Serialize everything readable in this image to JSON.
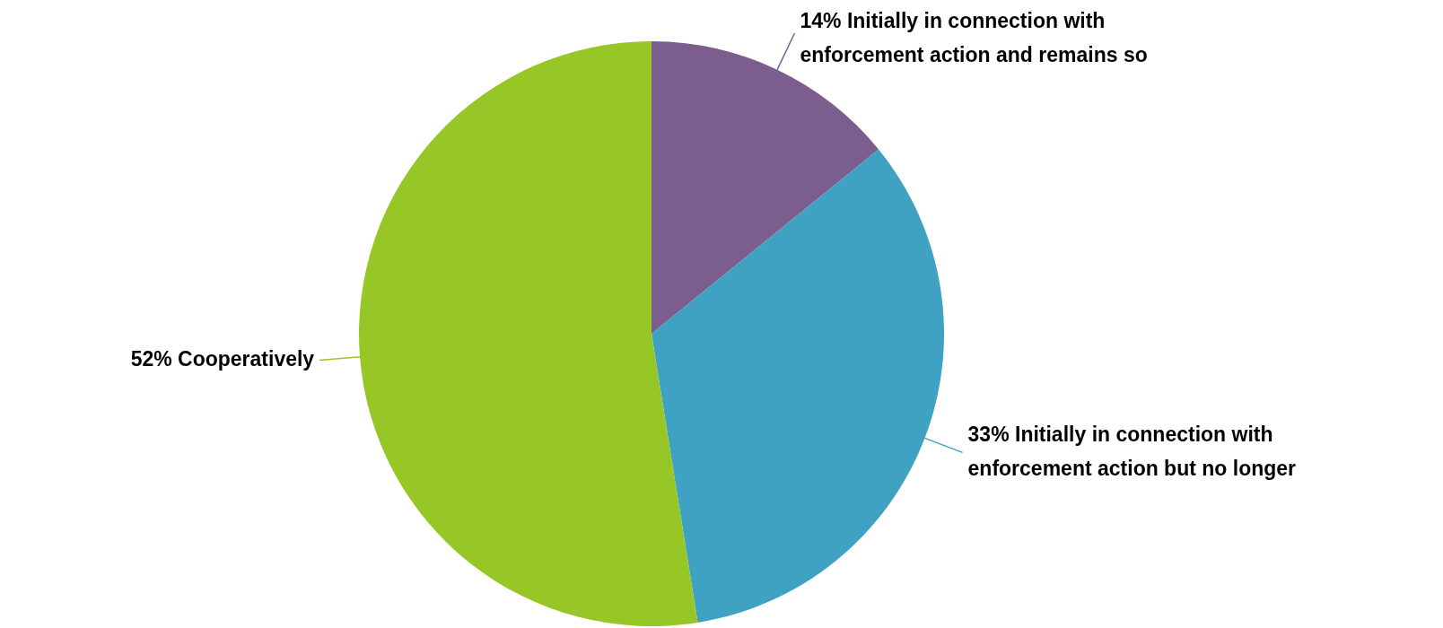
{
  "chart_data": {
    "type": "pie",
    "categories": [
      "Initially in connection with enforcement action and remains so",
      "Initially in connection with enforcement action but no longer",
      "Cooperatively"
    ],
    "values": [
      14,
      33,
      52
    ],
    "value_labels": [
      "14%",
      "33%",
      "52%"
    ],
    "colors": [
      "#7b5e8e",
      "#3fa2c2",
      "#97c726"
    ]
  }
}
